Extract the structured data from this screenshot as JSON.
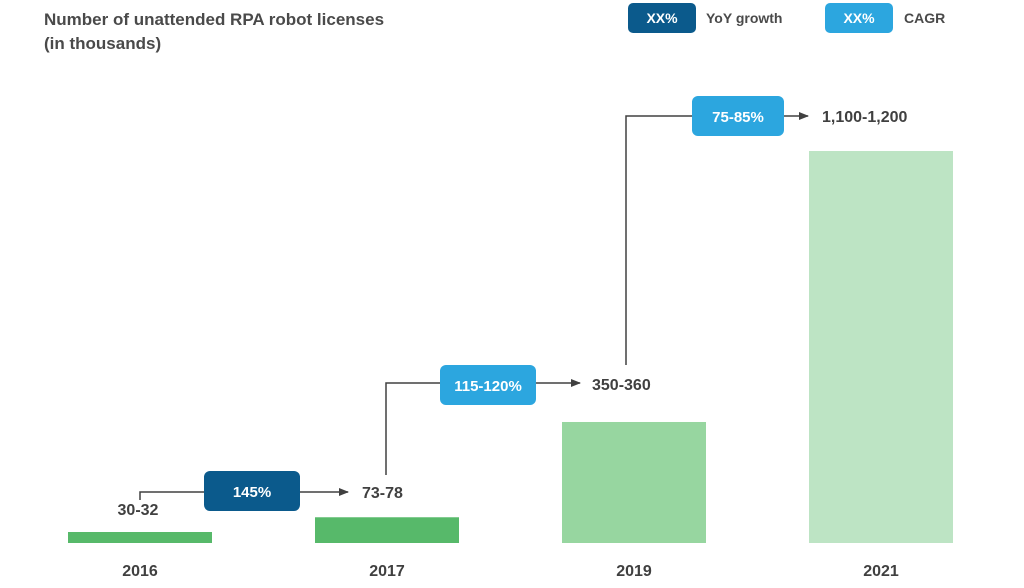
{
  "title_line1": "Number of unattended RPA robot licenses",
  "title_line2": "(in thousands)",
  "legend": [
    {
      "badge": "XX%",
      "label": "YoY growth",
      "color": "#0b5a8c"
    },
    {
      "badge": "XX%",
      "label": "CAGR",
      "color": "#2ca6df"
    }
  ],
  "colors": {
    "bar_2016": "#57b96a",
    "bar_2017": "#57b96a",
    "bar_2019": "#97d6a0",
    "bar_2021": "#bde4c4",
    "arrow": "#404040",
    "text": "#404040"
  },
  "chart_data": {
    "type": "bar",
    "title": "Number of unattended RPA robot licenses (in thousands)",
    "categories": [
      "2016",
      "2017",
      "2019",
      "2021"
    ],
    "values": [
      31,
      75.5,
      355,
      1150
    ],
    "value_labels": [
      "30-32",
      "73-78",
      "350-360",
      "1,100-1,200"
    ],
    "growth_labels": [
      {
        "from": "2016",
        "to": "2017",
        "text": "145%",
        "kind": "YoY growth"
      },
      {
        "from": "2017",
        "to": "2019",
        "text": "115-120%",
        "kind": "CAGR"
      },
      {
        "from": "2019",
        "to": "2021",
        "text": "75-85%",
        "kind": "CAGR"
      }
    ],
    "ylim": [
      0,
      1150
    ],
    "grid": false,
    "legend_position": "top-right"
  }
}
